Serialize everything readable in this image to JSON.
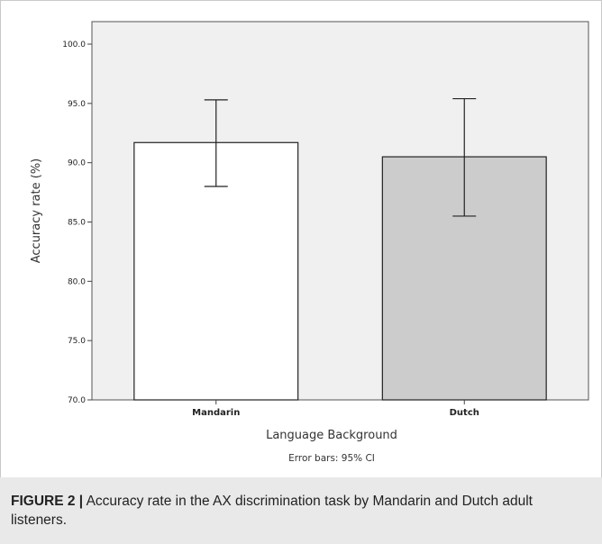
{
  "chart_data": {
    "type": "bar",
    "categories": [
      "Mandarin",
      "Dutch"
    ],
    "values": [
      91.7,
      90.5
    ],
    "error_bars": {
      "lower": [
        88.0,
        85.5
      ],
      "upper": [
        95.3,
        95.4
      ]
    },
    "bar_colors": [
      "#ffffff",
      "#cccccc"
    ],
    "xlabel": "Language Background",
    "ylabel": "Accuracy rate (%)",
    "ylim": [
      70,
      100
    ],
    "yticks": [
      "70.0",
      "75.0",
      "80.0",
      "85.0",
      "90.0",
      "95.0",
      "100.0"
    ],
    "note": "Error bars: 95% CI",
    "plot_background": "#f0f0f0",
    "grid": false
  },
  "caption": {
    "label": "FIGURE 2 |",
    "text": " Accuracy rate in the AX discrimination task by Mandarin and Dutch adult listeners."
  }
}
